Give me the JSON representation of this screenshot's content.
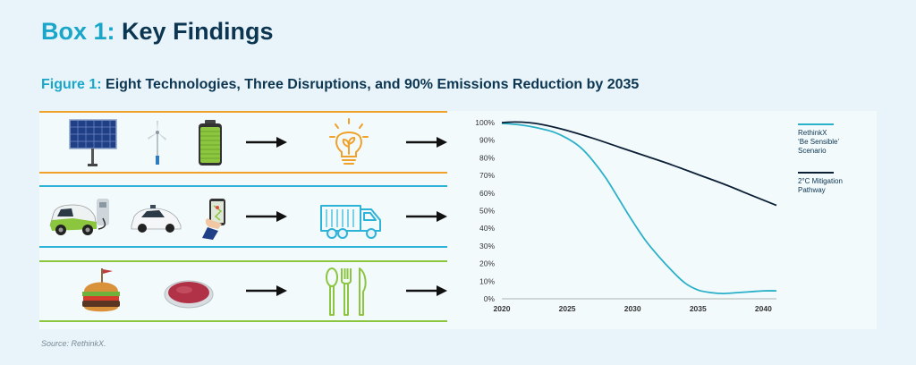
{
  "box_title": {
    "prefix": "Box 1:",
    "text": "Key Findings"
  },
  "figure_title": {
    "prefix": "Figure 1:",
    "text": "Eight Technologies, Three Disruptions, and 90% Emissions Reduction by 2035"
  },
  "source": "Source: RethinkX.",
  "colors": {
    "orange": "#f0a12a",
    "blue": "#2eb3d8",
    "green": "#8cc63f",
    "navy": "#0b1f35",
    "teal": "#2ab0c8"
  },
  "rows": [
    {
      "name": "energy",
      "inputs": [
        "solar-panel-icon",
        "wind-turbine-icon",
        "battery-icon"
      ],
      "output": "lightbulb-plant-icon"
    },
    {
      "name": "transport",
      "inputs": [
        "electric-car-charging-icon",
        "autonomous-car-icon",
        "ride-hailing-phone-icon"
      ],
      "output": "truck-icon"
    },
    {
      "name": "food",
      "inputs": [
        "burger-icon",
        "cultured-meat-dish-icon"
      ],
      "output": "cutlery-icon"
    }
  ],
  "chart_data": {
    "type": "line",
    "xlim": [
      2020,
      2041
    ],
    "ylim": [
      0,
      100
    ],
    "x_ticks": [
      "2020",
      "2025",
      "2030",
      "2035",
      "2040"
    ],
    "x_tick_values": [
      2020,
      2025,
      2030,
      2035,
      2040
    ],
    "y_ticks": [
      "0%",
      "10%",
      "20%",
      "30%",
      "40%",
      "50%",
      "60%",
      "70%",
      "80%",
      "90%",
      "100%"
    ],
    "y_tick_values": [
      0,
      10,
      20,
      30,
      40,
      50,
      60,
      70,
      80,
      90,
      100
    ],
    "grid": false,
    "legend_position": "right",
    "series": [
      {
        "name": "RethinkX\n'Be Sensible'\nScenario",
        "legend_lines": [
          "RethinkX",
          "‘Be Sensible’",
          "Scenario"
        ],
        "color": "#2ab0c8",
        "x": [
          2020,
          2021,
          2022,
          2023,
          2024,
          2025,
          2026,
          2027,
          2028,
          2029,
          2030,
          2031,
          2032,
          2033,
          2034,
          2035,
          2036,
          2037,
          2038,
          2039,
          2040,
          2041
        ],
        "y": [
          99.5,
          99,
          98,
          96.5,
          94.5,
          91,
          86,
          78,
          68,
          56,
          44,
          33,
          24,
          16,
          9,
          5,
          3.5,
          3,
          3.5,
          4,
          4.5,
          4.5
        ]
      },
      {
        "name": "2°C Mitigation Pathway",
        "legend_lines": [
          "2°C Mitigation",
          "Pathway"
        ],
        "color": "#0b1f35",
        "x": [
          2020,
          2021,
          2022,
          2023,
          2025,
          2027,
          2029,
          2031,
          2033,
          2035,
          2037,
          2039,
          2041
        ],
        "y": [
          100,
          100.3,
          100,
          99,
          95.5,
          91,
          86,
          81,
          76,
          70.5,
          65,
          59,
          53
        ]
      }
    ]
  }
}
